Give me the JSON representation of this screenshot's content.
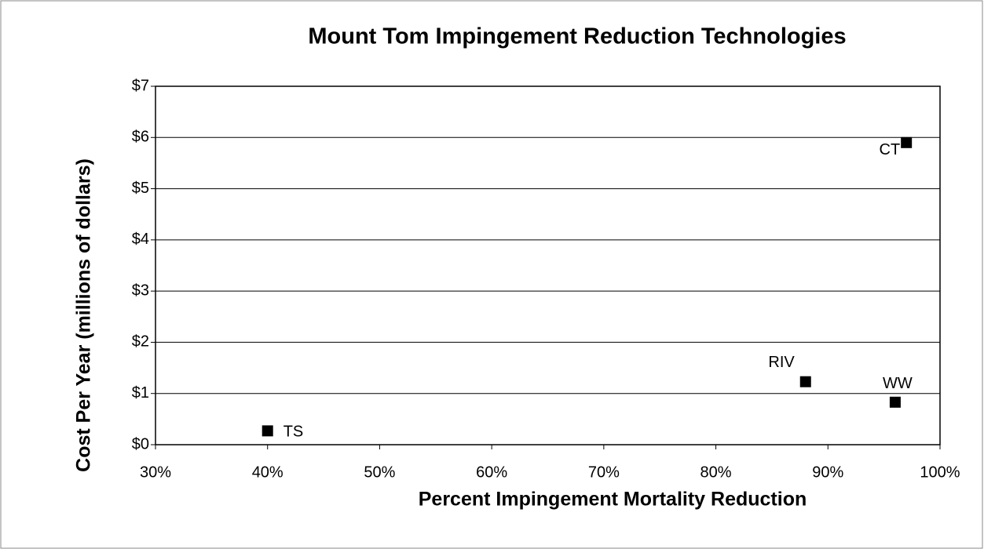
{
  "chart_data": {
    "type": "scatter",
    "title": "Mount Tom Impingement Reduction Technologies",
    "x_label": "Percent Impingement Mortality Reduction",
    "y_label": "Cost Per Year (millions of dollars)",
    "labels": [
      "TS",
      "RIV",
      "WW",
      "CT"
    ],
    "x": [
      40,
      88,
      96,
      97
    ],
    "values": [
      0.27,
      1.23,
      0.83,
      5.9
    ],
    "color": "#000000",
    "xlim": [
      30,
      100
    ],
    "xticks": [
      {
        "value": 30,
        "label": "30%"
      },
      {
        "value": 40,
        "label": "40%"
      },
      {
        "value": 50,
        "label": "50%"
      },
      {
        "value": 60,
        "label": "60%"
      },
      {
        "value": 70,
        "label": "70%"
      },
      {
        "value": 80,
        "label": "80%"
      },
      {
        "value": 90,
        "label": "90%"
      },
      {
        "value": 100,
        "label": "100%"
      }
    ],
    "ylim": [
      0,
      7
    ],
    "yticks": [
      {
        "value": 0,
        "label": "$0"
      },
      {
        "value": 1,
        "label": "$1"
      },
      {
        "value": 2,
        "label": "$2"
      },
      {
        "value": 3,
        "label": "$3"
      },
      {
        "value": 4,
        "label": "$4"
      },
      {
        "value": 5,
        "label": "$5"
      },
      {
        "value": 6,
        "label": "$6"
      },
      {
        "value": 7,
        "label": "$7"
      }
    ],
    "grid": true
  }
}
